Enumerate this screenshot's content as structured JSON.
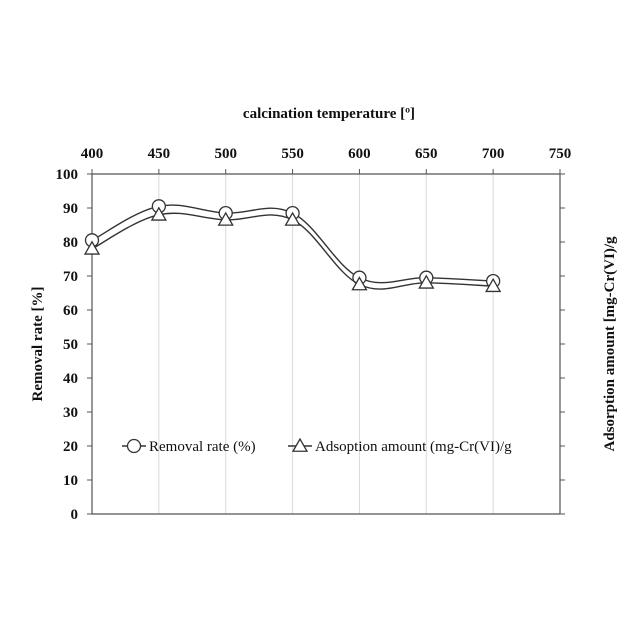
{
  "chart_data": {
    "type": "line",
    "xlabel": "calcination temperature [º]",
    "ylabel": "Removal rate [%]",
    "y2label": "Adsorption amount  [mg-Cr(VI)/g",
    "xlim": [
      400,
      750
    ],
    "xticks": [
      "400",
      "450",
      "500",
      "550",
      "600",
      "650",
      "700",
      "750"
    ],
    "ylim": [
      0,
      100
    ],
    "yticks": [
      "0",
      "10",
      "20",
      "30",
      "40",
      "50",
      "60",
      "70",
      "80",
      "90",
      "100"
    ],
    "x_axis_position": "top",
    "grid": "vertical",
    "smooth": true,
    "legend_position": "lower-middle",
    "line_color": "#333333",
    "series": [
      {
        "name": "Removal rate (%)",
        "marker": "circle",
        "x": [
          400,
          450,
          500,
          550,
          600,
          650,
          700
        ],
        "values": [
          80.5,
          90.5,
          88.5,
          88.5,
          69.5,
          69.5,
          68.5
        ]
      },
      {
        "name": "Adsoption amount (mg-Cr(VI)/g",
        "marker": "triangle",
        "x": [
          400,
          450,
          500,
          550,
          600,
          650,
          700
        ],
        "values": [
          78,
          88,
          86.5,
          86.5,
          67.5,
          68,
          67
        ]
      }
    ]
  }
}
